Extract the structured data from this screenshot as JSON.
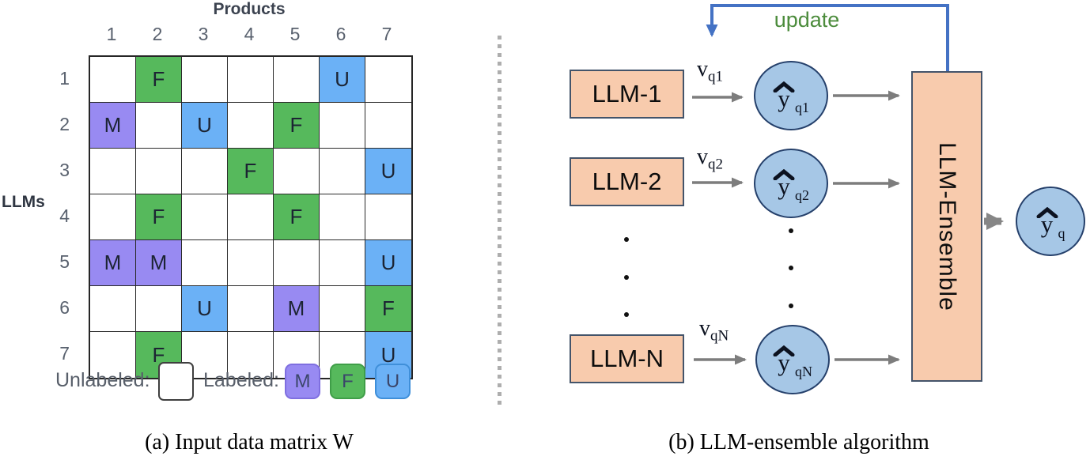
{
  "figure": {
    "panel_a": {
      "title": "Products",
      "row_axis_label": "LLMs",
      "col_labels": [
        "1",
        "2",
        "3",
        "4",
        "5",
        "6",
        "7"
      ],
      "row_labels": [
        "1",
        "2",
        "3",
        "4",
        "5",
        "6",
        "7"
      ],
      "cells": [
        [
          "",
          "F",
          "",
          "",
          "",
          "U",
          ""
        ],
        [
          "M",
          "",
          "U",
          "",
          "F",
          "",
          ""
        ],
        [
          "",
          "",
          "",
          "F",
          "",
          "",
          "U"
        ],
        [
          "",
          "F",
          "",
          "",
          "F",
          "",
          ""
        ],
        [
          "M",
          "M",
          "",
          "",
          "",
          "",
          "U"
        ],
        [
          "",
          "",
          "U",
          "",
          "M",
          "",
          "F"
        ],
        [
          "",
          "F",
          "",
          "",
          "",
          "",
          "U"
        ]
      ],
      "cell_colors": {
        "M": "#988af2",
        "F": "#56b95c",
        "U": "#6bb1f6"
      },
      "legend": {
        "unlabeled_label": "Unlabeled:",
        "labeled_label": "Labeled:",
        "items": [
          {
            "letter": "M",
            "fill": "#988af2",
            "border": "#7f6fe0"
          },
          {
            "letter": "F",
            "fill": "#56b95c",
            "border": "#3f9e48"
          },
          {
            "letter": "U",
            "fill": "#6bb1f6",
            "border": "#3f8fd9"
          }
        ]
      },
      "caption": "(a) Input data matrix W"
    },
    "panel_b": {
      "update_label": "update",
      "units": [
        {
          "llm_label": "LLM-1",
          "v_base": "v",
          "v_sub": "q1",
          "y_base": "y",
          "y_sub": "q1"
        },
        {
          "llm_label": "LLM-2",
          "v_base": "v",
          "v_sub": "q2",
          "y_base": "y",
          "y_sub": "q2"
        },
        {
          "llm_label": "LLM-N",
          "v_base": "v",
          "v_sub": "qN",
          "y_base": "y",
          "y_sub": "qN"
        }
      ],
      "ensemble_label": "LLM-Ensemble",
      "output": {
        "y_base": "y",
        "y_sub": "q"
      },
      "caption": "(b) LLM-ensemble algorithm",
      "colors": {
        "box_fill": "#f8cbad",
        "box_border": "#44546a",
        "circle_fill": "#a6c7e6",
        "circle_border": "#25406b",
        "arrow_gray": "#7d7d7d",
        "update_line": "#4472c4",
        "update_text": "#4c8c3c"
      }
    }
  }
}
